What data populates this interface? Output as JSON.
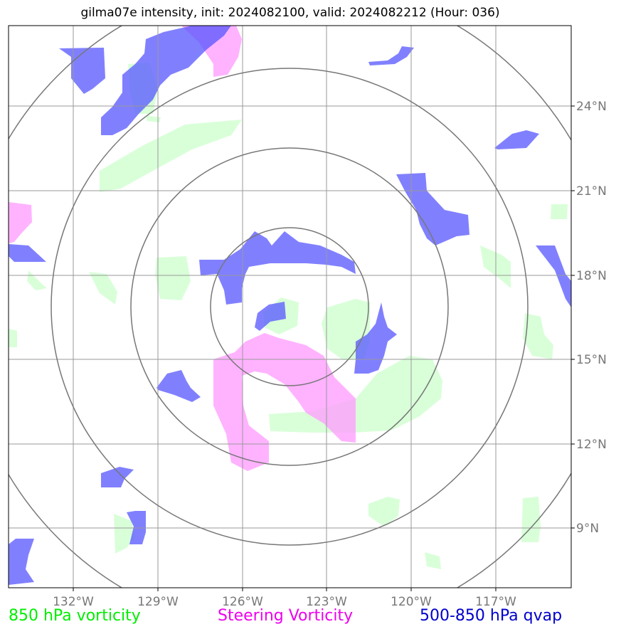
{
  "title": "gilma07e intensity, init: 2024082100, valid: 2024082212 (Hour: 036)",
  "map": {
    "projection": "lat-lon",
    "lon_range": [
      -134.5,
      -114.5
    ],
    "lat_range": [
      7,
      27
    ],
    "lon_ticks": [
      -132,
      -129,
      -126,
      -123,
      -120,
      -117
    ],
    "lon_labels": [
      "132°W",
      "129°W",
      "126°W",
      "123°W",
      "120°W",
      "117°W"
    ],
    "lat_ticks": [
      9,
      12,
      15,
      18,
      21,
      24
    ],
    "lat_labels": [
      "9°N",
      "12°N",
      "15°N",
      "18°N",
      "21°N",
      "24°N"
    ],
    "storm_center": {
      "lon": -124.5,
      "lat": 17
    },
    "range_rings_deg": [
      2.8,
      5.6,
      8.6,
      11.6
    ],
    "grid": true
  },
  "legend": [
    {
      "label": "850 hPa vorticity",
      "color": "#00ee00"
    },
    {
      "label": "Steering Vorticity",
      "color": "#ee00ee"
    },
    {
      "label": "500-850 hPa qvap",
      "color": "#0000cc"
    }
  ],
  "colors": {
    "green_fill": "#ccffcc",
    "magenta_fill": "#ff99ff",
    "blue_fill": "#5555ff",
    "grid": "#999999",
    "rings": "#777777"
  }
}
